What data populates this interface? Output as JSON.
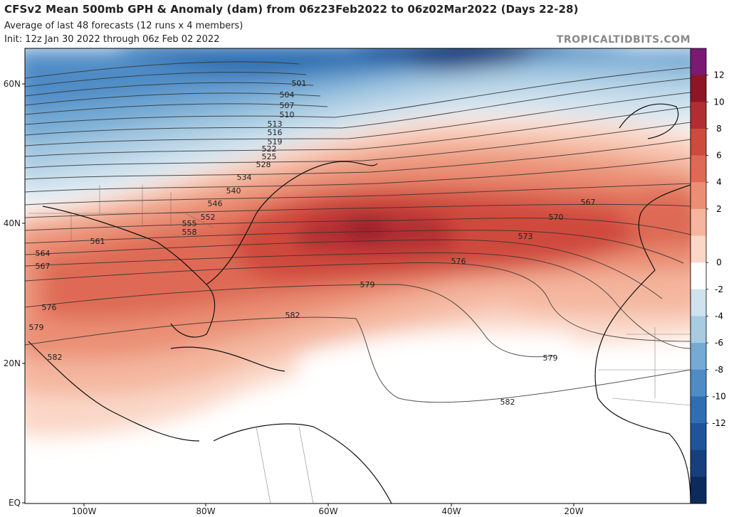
{
  "header": {
    "title": "CFSv2 Mean 500mb GPH & Anomaly (dam) from 06z23Feb2022 to 06z02Mar2022 (Days 22-28)",
    "subtitle1": "Average of last 48 forecasts (12 runs x 4 members)",
    "subtitle2": "Init: 12z Jan 30 2022 through 06z Feb 02 2022",
    "brand": "TROPICALTIDBITS.COM"
  },
  "map": {
    "lat_labels": [
      "60N",
      "40N",
      "20N",
      "EQ"
    ],
    "lon_labels": [
      "100W",
      "80W",
      "60W",
      "40W",
      "20W"
    ]
  },
  "colorbar": {
    "ticks": [
      "12",
      "10",
      "8",
      "6",
      "4",
      "2",
      "0",
      "-2",
      "-4",
      "-6",
      "-8",
      "-10",
      "-12"
    ],
    "colors": [
      "#7a1a73",
      "#8e1525",
      "#b22d31",
      "#cf4a3e",
      "#de6a55",
      "#ea8f75",
      "#f4b69e",
      "#fad7c7",
      "#ffffff",
      "#cfe2ee",
      "#a8cbe2",
      "#74aad4",
      "#4f8cc6",
      "#2f6eb1",
      "#1f5499",
      "#163f7d",
      "#0d2a5c"
    ]
  },
  "contours": {
    "north_labels": [
      "501",
      "504",
      "507",
      "510",
      "513",
      "516",
      "519",
      "522",
      "525",
      "528"
    ],
    "mid_labels": [
      "534",
      "540",
      "546",
      "552",
      "555",
      "558",
      "561",
      "564",
      "567"
    ],
    "atlantic_labels": [
      "567",
      "570",
      "573",
      "576",
      "579",
      "582",
      "576",
      "579",
      "582",
      "579",
      "582"
    ]
  }
}
